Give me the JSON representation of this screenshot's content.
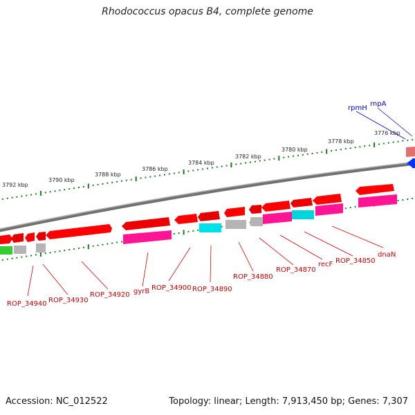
{
  "title": "Rhodococcus opacus B4, complete genome",
  "footer": {
    "accession": "Accession: NC_012522",
    "summary": "Topology: linear; Length: 7,913,450 bp; Genes: 7,307"
  },
  "map": {
    "scale_labels": [
      "3776 kbp",
      "3778 kbp",
      "3780 kbp",
      "3782 kbp",
      "3784 kbp",
      "3786 kbp",
      "3788 kbp",
      "3790 kbp",
      "3792 kbp"
    ],
    "gene_labels": [
      "ROP_34940",
      "ROP_34930",
      "ROP_34920",
      "gyrB",
      "ROP_34900",
      "ROP_34890",
      "ROP_34880",
      "ROP_34870",
      "recF",
      "ROP_34850",
      "dnaN"
    ],
    "blue_labels": [
      "rpmH",
      "rnpA"
    ],
    "colors": {
      "forward_gene": "#ff0000",
      "cds": "#ff1493",
      "grey_feature": "#b4b4b4",
      "cyan_feature": "#00e0e8",
      "green_feature": "#33cc33",
      "scale_ticks": "#1a7a1a",
      "backbone": "#808080",
      "gene_label": "#cc0000",
      "blue_label": "#0000cc"
    }
  }
}
